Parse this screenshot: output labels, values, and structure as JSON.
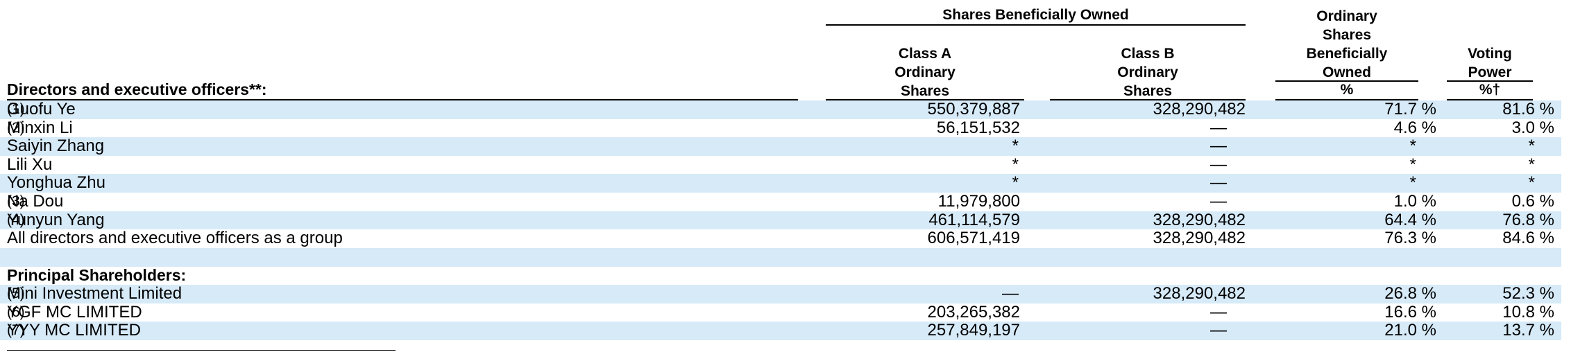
{
  "header": {
    "group_title": "Shares Beneficially Owned",
    "col_a": [
      "Class A",
      "Ordinary",
      "Shares"
    ],
    "col_b": [
      "Class B",
      "Ordinary",
      "Shares"
    ],
    "col_pct": [
      "Ordinary",
      "Shares",
      "Beneficially",
      "Owned",
      "%"
    ],
    "col_vote": [
      "Voting",
      "Power",
      "%†"
    ],
    "row_title": "Directors and executive officers**:"
  },
  "section2_title": "Principal Shareholders:",
  "rows": [
    {
      "name": "Guofu Ye",
      "fn": "(1)",
      "a": "550,379,887",
      "b": "328,290,482",
      "pct": "71.7 %",
      "vote": "81.6 %"
    },
    {
      "name": "Minxin Li",
      "fn": "(2)",
      "a": "56,151,532",
      "b": "—",
      "pct": "4.6 %",
      "vote": "3.0 %"
    },
    {
      "name": "Saiyin Zhang",
      "fn": "",
      "a": "*",
      "b": "—",
      "pct": "*",
      "vote": "*"
    },
    {
      "name": "Lili Xu",
      "fn": "",
      "a": "*",
      "b": "—",
      "pct": "*",
      "vote": "*"
    },
    {
      "name": "Yonghua Zhu",
      "fn": "",
      "a": "*",
      "b": "—",
      "pct": "*",
      "vote": "*"
    },
    {
      "name": "Na Dou",
      "fn": "(3)",
      "a": "11,979,800",
      "b": "—",
      "pct": "1.0 %",
      "vote": "0.6 %"
    },
    {
      "name": "Yunyun Yang",
      "fn": "(4)",
      "a": "461,114,579",
      "b": "328,290,482",
      "pct": "64.4 %",
      "vote": "76.8 %"
    },
    {
      "name": "All directors and executive officers as a group",
      "fn": "",
      "a": "606,571,419",
      "b": "328,290,482",
      "pct": "76.3 %",
      "vote": "84.6 %"
    }
  ],
  "rows2": [
    {
      "name": "Mini Investment Limited",
      "fn": "(5)",
      "a": "—",
      "b": "328,290,482",
      "pct": "26.8 %",
      "vote": "52.3 %"
    },
    {
      "name": "YGF MC LIMITED",
      "fn": "(6)",
      "a": "203,265,382",
      "b": "—",
      "pct": "16.6 %",
      "vote": "10.8 %"
    },
    {
      "name": "YYY MC LIMITED",
      "fn": "(7)",
      "a": "257,849,197",
      "b": "—",
      "pct": "21.0 %",
      "vote": "13.7 %"
    }
  ]
}
